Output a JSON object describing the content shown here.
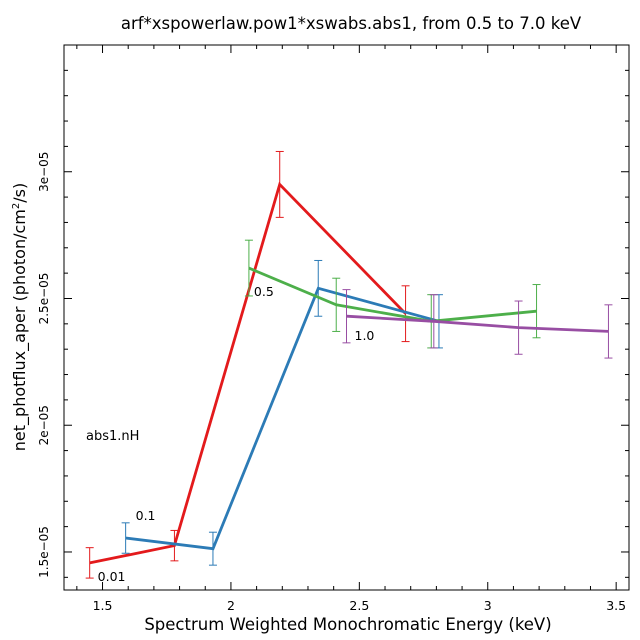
{
  "chart_data": {
    "type": "line",
    "title": "arf*xspowerlaw.pow1*xswabs.abs1, from 0.5 to 7.0 keV",
    "xlabel": "Spectrum Weighted Monochromatic Energy (keV)",
    "ylabel_main": "net_photflux_aper (photon/cm",
    "ylabel_sup": "2",
    "ylabel_end": "/s)",
    "xlim": [
      1.35,
      3.55
    ],
    "ylim": [
      1.35e-05,
      3.5e-05
    ],
    "x_ticks": [
      {
        "value": 1.5,
        "label": "1.5"
      },
      {
        "value": 2.0,
        "label": "2"
      },
      {
        "value": 2.5,
        "label": "2.5"
      },
      {
        "value": 3.0,
        "label": "3"
      },
      {
        "value": 3.5,
        "label": "3.5"
      }
    ],
    "y_ticks": [
      {
        "value": 1.5e-05,
        "label": "1.5e−05"
      },
      {
        "value": 2e-05,
        "label": "2e−05"
      },
      {
        "value": 2.5e-05,
        "label": "2.5e−05"
      },
      {
        "value": 3e-05,
        "label": "3e−05"
      }
    ],
    "legend_title": "abs1.nH",
    "series": [
      {
        "name": "0.01",
        "color": "#e31a1c",
        "x": [
          1.45,
          1.78,
          2.19,
          2.68
        ],
        "y": [
          1.457e-05,
          1.525e-05,
          2.95e-05,
          2.44e-05
        ],
        "err": [
          6e-07,
          6e-07,
          1.3e-06,
          1.1e-06
        ]
      },
      {
        "name": "0.1",
        "color": "#2c7bb6",
        "x": [
          1.59,
          1.93,
          2.34,
          2.81
        ],
        "y": [
          1.555e-05,
          1.513e-05,
          2.54e-05,
          2.41e-05
        ],
        "err": [
          6e-07,
          6.5e-07,
          1.1e-06,
          1.05e-06
        ]
      },
      {
        "name": "0.5",
        "color": "#4daf4a",
        "x": [
          2.07,
          2.41,
          2.78,
          3.19
        ],
        "y": [
          2.62e-05,
          2.475e-05,
          2.41e-05,
          2.45e-05
        ],
        "err": [
          1.1e-06,
          1.05e-06,
          1.05e-06,
          1.05e-06
        ]
      },
      {
        "name": "1.0",
        "color": "#984ea3",
        "x": [
          2.45,
          2.79,
          3.12,
          3.47
        ],
        "y": [
          2.43e-05,
          2.41e-05,
          2.385e-05,
          2.37e-05
        ],
        "err": [
          1.05e-06,
          1.05e-06,
          1.05e-06,
          1.05e-06
        ]
      }
    ]
  }
}
